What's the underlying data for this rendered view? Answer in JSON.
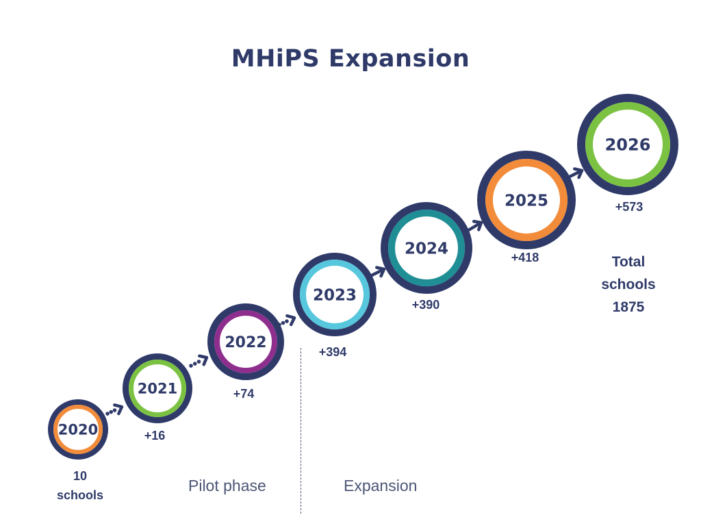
{
  "title": "MHiPS Expansion",
  "colors": {
    "navy": "#2f3a69",
    "orange": "#f28c3a",
    "green": "#7cc242",
    "purple": "#8e2f8e",
    "cyan": "#57c7dd",
    "teal": "#1f8e95",
    "divider": "#4d5575",
    "phase_text": "#4d5575"
  },
  "milestones": [
    {
      "year": "2020",
      "ring_color": "orange",
      "count": "10 schools"
    },
    {
      "year": "2021",
      "ring_color": "green",
      "count": "+16"
    },
    {
      "year": "2022",
      "ring_color": "purple",
      "count": "+74"
    },
    {
      "year": "2023",
      "ring_color": "cyan",
      "count": "+394"
    },
    {
      "year": "2024",
      "ring_color": "teal",
      "count": "+390"
    },
    {
      "year": "2025",
      "ring_color": "orange",
      "count": "+418"
    },
    {
      "year": "2026",
      "ring_color": "green",
      "count": "+573"
    }
  ],
  "total": {
    "line1": "Total",
    "line2": "schools",
    "line3": "1875"
  },
  "phases": {
    "pilot": "Pilot phase",
    "expansion": "Expansion"
  }
}
